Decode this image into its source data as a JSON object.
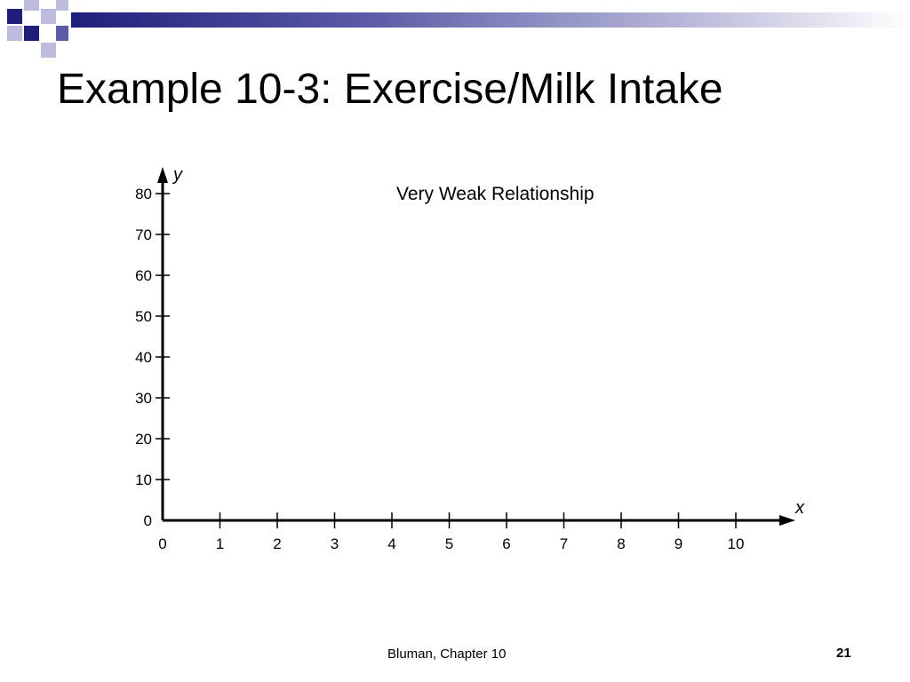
{
  "slide": {
    "title": "Example 10-3: Exercise/Milk Intake",
    "footer": "Bluman, Chapter 10",
    "page_number": "21"
  },
  "colors": {
    "decor_dark": "#1f1f7a",
    "decor_mid": "#5a5aa6",
    "decor_light": "#bcbcdc"
  },
  "chart_data": {
    "type": "scatter",
    "annotation": "Very Weak Relationship",
    "xlabel": "x",
    "ylabel": "y",
    "xlim": [
      0,
      10
    ],
    "ylim": [
      0,
      80
    ],
    "x_ticks": [
      0,
      1,
      2,
      3,
      4,
      5,
      6,
      7,
      8,
      9,
      10
    ],
    "y_ticks": [
      0,
      10,
      20,
      30,
      40,
      50,
      60,
      70,
      80
    ],
    "grid": false,
    "points": []
  }
}
